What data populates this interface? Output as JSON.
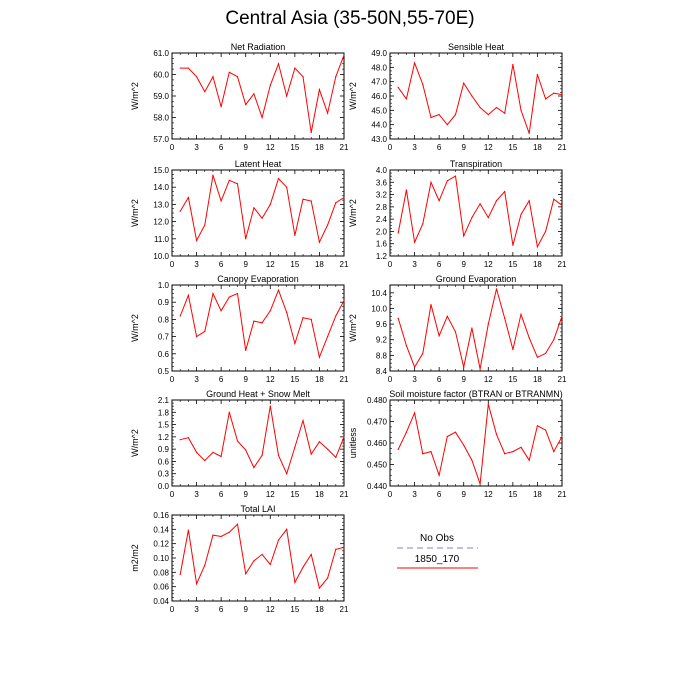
{
  "title": "Central Asia (35-50N,55-70E)",
  "colors": {
    "series": "#ff0000",
    "obs": "#9999dd",
    "axis": "#000000"
  },
  "legend": {
    "entries": [
      {
        "label": "No Obs",
        "style": "dashed",
        "color": "#9999dd"
      },
      {
        "label": "1850_170",
        "style": "solid",
        "color": "#ff0000"
      }
    ]
  },
  "chart_data": [
    {
      "type": "line",
      "title": "Net Radiation",
      "ylabel": "W/m^2",
      "ylim": [
        57.0,
        61.0
      ],
      "yticks": [
        57.0,
        58.0,
        59.0,
        60.0,
        61.0
      ],
      "ydecimals": 1,
      "xlim": [
        0,
        21
      ],
      "xticks": [
        0,
        3,
        6,
        9,
        12,
        15,
        18,
        21
      ],
      "series": [
        {
          "x": [
            1,
            2,
            3,
            4,
            5,
            6,
            7,
            8,
            9,
            10,
            11,
            12,
            13,
            14,
            15,
            16,
            17,
            18,
            19,
            20,
            21
          ],
          "y": [
            60.3,
            60.3,
            59.9,
            59.2,
            59.9,
            58.5,
            60.1,
            59.9,
            58.6,
            59.1,
            58.0,
            59.5,
            60.5,
            59.0,
            60.3,
            59.9,
            57.3,
            59.3,
            58.2,
            59.9,
            60.9
          ]
        }
      ]
    },
    {
      "type": "line",
      "title": "Sensible Heat",
      "ylabel": "W/m^2",
      "ylim": [
        43.0,
        49.0
      ],
      "yticks": [
        43.0,
        44.0,
        45.0,
        46.0,
        47.0,
        48.0,
        49.0
      ],
      "ydecimals": 1,
      "xlim": [
        0,
        21
      ],
      "xticks": [
        0,
        3,
        6,
        9,
        12,
        15,
        18,
        21
      ],
      "series": [
        {
          "x": [
            1,
            2,
            3,
            4,
            5,
            6,
            7,
            8,
            9,
            10,
            11,
            12,
            13,
            14,
            15,
            16,
            17,
            18,
            19,
            20,
            21
          ],
          "y": [
            46.6,
            45.8,
            48.3,
            46.8,
            44.5,
            44.7,
            44.0,
            44.7,
            46.9,
            46.0,
            45.2,
            44.7,
            45.2,
            44.8,
            48.2,
            45.0,
            43.4,
            47.5,
            45.8,
            46.2,
            46.1
          ]
        }
      ]
    },
    {
      "type": "line",
      "title": "Latent Heat",
      "ylabel": "W/m^2",
      "ylim": [
        10.0,
        15.0
      ],
      "yticks": [
        10.0,
        11.0,
        12.0,
        13.0,
        14.0,
        15.0
      ],
      "ydecimals": 1,
      "xlim": [
        0,
        21
      ],
      "xticks": [
        0,
        3,
        6,
        9,
        12,
        15,
        18,
        21
      ],
      "series": [
        {
          "x": [
            1,
            2,
            3,
            4,
            5,
            6,
            7,
            8,
            9,
            10,
            11,
            12,
            13,
            14,
            15,
            16,
            17,
            18,
            19,
            20,
            21
          ],
          "y": [
            12.6,
            13.4,
            10.9,
            11.8,
            14.7,
            13.2,
            14.4,
            14.2,
            11.0,
            12.8,
            12.2,
            13.0,
            14.5,
            14.0,
            11.2,
            13.3,
            13.2,
            10.8,
            11.8,
            13.1,
            13.4
          ]
        }
      ]
    },
    {
      "type": "line",
      "title": "Transpiration",
      "ylabel": "W/m^2",
      "ylim": [
        1.2,
        4.0
      ],
      "yticks": [
        1.2,
        1.6,
        2.0,
        2.4,
        2.8,
        3.2,
        3.6,
        4.0
      ],
      "ydecimals": 1,
      "xlim": [
        0,
        21
      ],
      "xticks": [
        0,
        3,
        6,
        9,
        12,
        15,
        18,
        21
      ],
      "series": [
        {
          "x": [
            1,
            2,
            3,
            4,
            5,
            6,
            7,
            8,
            9,
            10,
            11,
            12,
            13,
            14,
            15,
            16,
            17,
            18,
            19,
            20,
            21
          ],
          "y": [
            1.95,
            3.35,
            1.65,
            2.25,
            3.6,
            3.0,
            3.65,
            3.8,
            1.85,
            2.45,
            2.9,
            2.45,
            3.0,
            3.3,
            1.55,
            2.55,
            3.0,
            1.5,
            2.0,
            3.05,
            2.85
          ]
        }
      ]
    },
    {
      "type": "line",
      "title": "Canopy Evaporation",
      "ylabel": "W/m^2",
      "ylim": [
        0.5,
        1.0
      ],
      "yticks": [
        0.5,
        0.6,
        0.7,
        0.8,
        0.9,
        1.0
      ],
      "ydecimals": 1,
      "xlim": [
        0,
        21
      ],
      "xticks": [
        0,
        3,
        6,
        9,
        12,
        15,
        18,
        21
      ],
      "series": [
        {
          "x": [
            1,
            2,
            3,
            4,
            5,
            6,
            7,
            8,
            9,
            10,
            11,
            12,
            13,
            14,
            15,
            16,
            17,
            18,
            19,
            20,
            21
          ],
          "y": [
            0.82,
            0.94,
            0.7,
            0.73,
            0.95,
            0.85,
            0.93,
            0.95,
            0.62,
            0.79,
            0.78,
            0.85,
            0.97,
            0.84,
            0.66,
            0.81,
            0.8,
            0.58,
            0.7,
            0.82,
            0.91
          ]
        }
      ]
    },
    {
      "type": "line",
      "title": "Ground Evaporation",
      "ylabel": "W/m^2",
      "ylim": [
        8.4,
        10.6
      ],
      "yticks": [
        8.4,
        8.8,
        9.2,
        9.6,
        10.0,
        10.4
      ],
      "ydecimals": 1,
      "xlim": [
        0,
        21
      ],
      "xticks": [
        0,
        3,
        6,
        9,
        12,
        15,
        18,
        21
      ],
      "series": [
        {
          "x": [
            1,
            2,
            3,
            4,
            5,
            6,
            7,
            8,
            9,
            10,
            11,
            12,
            13,
            14,
            15,
            16,
            17,
            18,
            19,
            20,
            21
          ],
          "y": [
            9.75,
            9.05,
            8.5,
            8.85,
            10.1,
            9.3,
            9.8,
            9.4,
            8.5,
            9.5,
            8.45,
            9.6,
            10.5,
            9.75,
            8.95,
            9.85,
            9.25,
            8.75,
            8.85,
            9.2,
            9.8
          ]
        }
      ]
    },
    {
      "type": "line",
      "title": "Ground Heat + Snow Melt",
      "ylabel": "W/m^2",
      "ylim": [
        0.0,
        2.1
      ],
      "yticks": [
        0.0,
        0.3,
        0.6,
        0.9,
        1.2,
        1.5,
        1.8,
        2.1
      ],
      "ydecimals": 1,
      "xlim": [
        0,
        21
      ],
      "xticks": [
        0,
        3,
        6,
        9,
        12,
        15,
        18,
        21
      ],
      "series": [
        {
          "x": [
            1,
            2,
            3,
            4,
            5,
            6,
            7,
            8,
            9,
            10,
            11,
            12,
            13,
            14,
            15,
            16,
            17,
            18,
            19,
            20,
            21
          ],
          "y": [
            1.13,
            1.18,
            0.82,
            0.62,
            0.82,
            0.72,
            1.8,
            1.1,
            0.88,
            0.45,
            0.75,
            1.95,
            0.75,
            0.3,
            0.95,
            1.6,
            0.78,
            1.08,
            0.9,
            0.7,
            1.2
          ]
        }
      ]
    },
    {
      "type": "line",
      "title": "Soil moisture factor (BTRAN or BTRANMN)",
      "ylabel": "unitless",
      "ylim": [
        0.44,
        0.48
      ],
      "yticks": [
        0.44,
        0.45,
        0.46,
        0.47,
        0.48
      ],
      "ydecimals": 3,
      "xlim": [
        0,
        21
      ],
      "xticks": [
        0,
        3,
        6,
        9,
        12,
        15,
        18,
        21
      ],
      "series": [
        {
          "x": [
            1,
            2,
            3,
            4,
            5,
            6,
            7,
            8,
            9,
            10,
            11,
            12,
            13,
            14,
            15,
            16,
            17,
            18,
            19,
            20,
            21
          ],
          "y": [
            0.457,
            0.465,
            0.474,
            0.455,
            0.456,
            0.445,
            0.463,
            0.465,
            0.459,
            0.452,
            0.441,
            0.478,
            0.464,
            0.455,
            0.456,
            0.458,
            0.452,
            0.468,
            0.466,
            0.456,
            0.463
          ]
        }
      ]
    },
    {
      "type": "line",
      "title": "Total LAI",
      "ylabel": "m2/m2",
      "ylim": [
        0.04,
        0.16
      ],
      "yticks": [
        0.04,
        0.06,
        0.08,
        0.1,
        0.12,
        0.14,
        0.16
      ],
      "ydecimals": 2,
      "xlim": [
        0,
        21
      ],
      "xticks": [
        0,
        3,
        6,
        9,
        12,
        15,
        18,
        21
      ],
      "series": [
        {
          "x": [
            1,
            2,
            3,
            4,
            5,
            6,
            7,
            8,
            9,
            10,
            11,
            12,
            13,
            14,
            15,
            16,
            17,
            18,
            19,
            20,
            21
          ],
          "y": [
            0.077,
            0.139,
            0.064,
            0.09,
            0.132,
            0.13,
            0.136,
            0.147,
            0.078,
            0.096,
            0.105,
            0.091,
            0.125,
            0.14,
            0.066,
            0.087,
            0.105,
            0.058,
            0.072,
            0.112,
            0.115
          ]
        }
      ]
    }
  ]
}
